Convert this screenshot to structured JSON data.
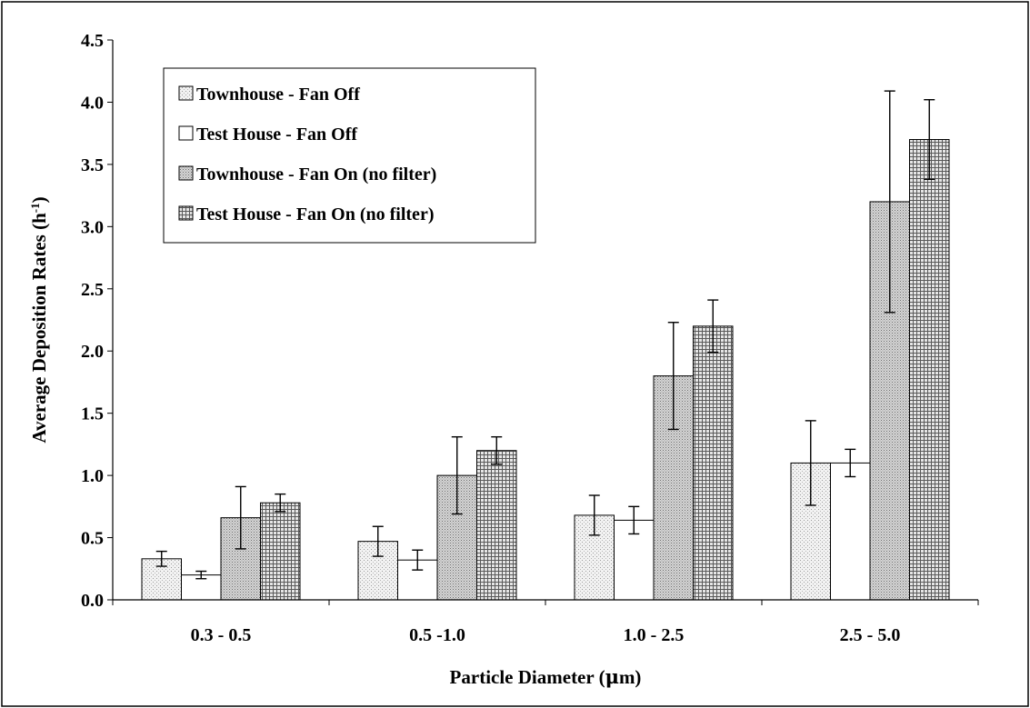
{
  "chart_data": {
    "type": "bar",
    "title": "",
    "xlabel": "Particle Diameter (",
    "xlabel_mu": "μ",
    "xlabel_end": "m)",
    "ylabel": "Average Deposition Rates (h",
    "ylabel_sup": "-1",
    "ylabel_end": ")",
    "ylim": [
      0,
      4.5
    ],
    "yticks": [
      "0.0",
      "0.5",
      "1.0",
      "1.5",
      "2.0",
      "2.5",
      "3.0",
      "3.5",
      "4.0",
      "4.5"
    ],
    "categories": [
      "0.3 - 0.5",
      "0.5  -1.0",
      "1.0 - 2.5",
      "2.5 - 5.0"
    ],
    "legend_position": "top-left",
    "grid": false,
    "series": [
      {
        "name": "Townhouse - Fan Off",
        "pattern": "light-dots",
        "values": [
          0.33,
          0.47,
          0.68,
          1.1
        ],
        "err": [
          0.06,
          0.12,
          0.16,
          0.34
        ]
      },
      {
        "name": "Test House - Fan Off",
        "pattern": "white",
        "values": [
          0.2,
          0.32,
          0.64,
          1.1
        ],
        "err": [
          0.03,
          0.08,
          0.11,
          0.11
        ]
      },
      {
        "name": "Townhouse - Fan On (no filter)",
        "pattern": "medium-dots",
        "values": [
          0.66,
          1.0,
          1.8,
          3.2
        ],
        "err": [
          0.25,
          0.31,
          0.43,
          0.89
        ]
      },
      {
        "name": "Test House - Fan On (no filter)",
        "pattern": "grid",
        "values": [
          0.78,
          1.2,
          2.2,
          3.7
        ],
        "err": [
          0.07,
          0.11,
          0.21,
          0.32
        ]
      }
    ]
  }
}
